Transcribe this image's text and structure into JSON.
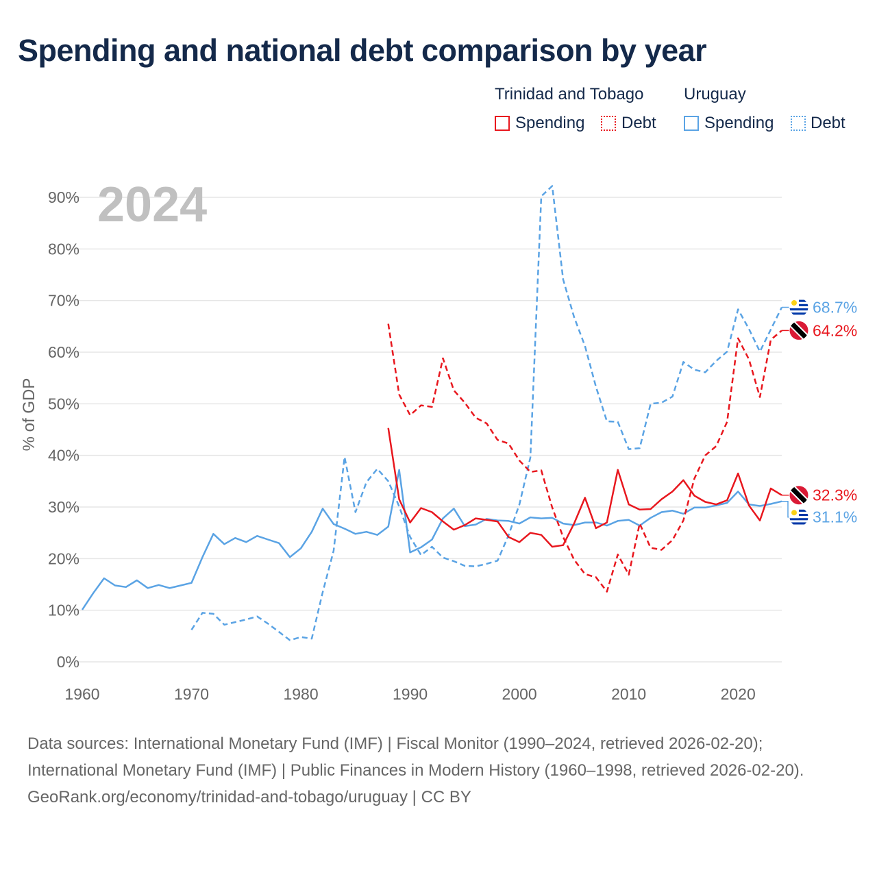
{
  "title": "Spending and national debt comparison by year",
  "legend": {
    "groups": [
      {
        "country": "Trinidad and Tobago",
        "color": "#e8171e",
        "items": [
          {
            "label": "Spending",
            "style": "solid"
          },
          {
            "label": "Debt",
            "style": "dotted"
          }
        ]
      },
      {
        "country": "Uruguay",
        "color": "#5aa3e4",
        "items": [
          {
            "label": "Spending",
            "style": "solid"
          },
          {
            "label": "Debt",
            "style": "dotted"
          }
        ]
      }
    ]
  },
  "year_label": "2024",
  "colors": {
    "tt": "#e8171e",
    "uy": "#5aa3e4",
    "grid": "#e6e6e6",
    "axis_text": "#666666",
    "title": "#14294a",
    "year": "#c0c0c0"
  },
  "chart_data": {
    "type": "line",
    "title": "Spending and national debt comparison by year",
    "xlabel": "",
    "ylabel": "% of GDP",
    "xlim": [
      1960,
      2024
    ],
    "ylim": [
      0,
      90
    ],
    "x_ticks": [
      1960,
      1970,
      1980,
      1990,
      2000,
      2010,
      2020
    ],
    "x_tick_labels": [
      "1960",
      "1970",
      "1980",
      "1990",
      "2000",
      "2010",
      "2020"
    ],
    "y_ticks": [
      0,
      10,
      20,
      30,
      40,
      50,
      60,
      70,
      80,
      90
    ],
    "y_tick_labels": [
      "0%",
      "10%",
      "20%",
      "30%",
      "40%",
      "50%",
      "60%",
      "70%",
      "80%",
      "90%"
    ],
    "series": [
      {
        "name": "Uruguay Spending",
        "country": "uy",
        "dash": "solid",
        "x": [
          1960,
          1961,
          1962,
          1963,
          1964,
          1965,
          1966,
          1967,
          1968,
          1969,
          1970,
          1971,
          1972,
          1973,
          1974,
          1975,
          1976,
          1977,
          1978,
          1979,
          1980,
          1981,
          1982,
          1983,
          1984,
          1985,
          1986,
          1987,
          1988,
          1989,
          1990,
          1991,
          1992,
          1993,
          1994,
          1995,
          1996,
          1997,
          1998,
          1999,
          2000,
          2001,
          2002,
          2003,
          2004,
          2005,
          2006,
          2007,
          2008,
          2009,
          2010,
          2011,
          2012,
          2013,
          2014,
          2015,
          2016,
          2017,
          2018,
          2019,
          2020,
          2021,
          2022,
          2023,
          2024
        ],
        "values": [
          10.1,
          13.3,
          16.2,
          14.8,
          14.5,
          15.8,
          14.3,
          14.9,
          14.3,
          14.8,
          15.3,
          20.3,
          24.8,
          22.8,
          24.0,
          23.2,
          24.4,
          23.7,
          23.0,
          20.3,
          22.0,
          25.2,
          29.7,
          26.7,
          25.8,
          24.8,
          25.2,
          24.6,
          26.2,
          37.2,
          21.2,
          22.2,
          23.7,
          27.8,
          29.7,
          26.3,
          26.6,
          27.7,
          27.4,
          27.3,
          26.8,
          28.0,
          27.8,
          27.9,
          26.8,
          26.5,
          27.0,
          27.0,
          26.4,
          27.3,
          27.5,
          26.4,
          27.9,
          29.0,
          29.3,
          28.7,
          29.9,
          29.9,
          30.3,
          30.8,
          33.0,
          30.5,
          30.2,
          30.6,
          31.1
        ]
      },
      {
        "name": "Uruguay Debt",
        "country": "uy",
        "dash": "dashed",
        "x": [
          1970,
          1971,
          1972,
          1973,
          1974,
          1975,
          1976,
          1977,
          1978,
          1979,
          1980,
          1981,
          1982,
          1983,
          1984,
          1985,
          1986,
          1987,
          1988,
          1989,
          1990,
          1991,
          1992,
          1993,
          1994,
          1995,
          1996,
          1997,
          1998,
          1999,
          2000,
          2001,
          2002,
          2003,
          2004,
          2005,
          2006,
          2007,
          2008,
          2009,
          2010,
          2011,
          2012,
          2013,
          2014,
          2015,
          2016,
          2017,
          2018,
          2019,
          2020,
          2021,
          2022,
          2023,
          2024
        ],
        "values": [
          6.2,
          9.5,
          9.3,
          7.2,
          7.7,
          8.2,
          8.8,
          7.4,
          5.8,
          4.2,
          4.8,
          4.5,
          13.5,
          21.5,
          39.7,
          29.0,
          34.8,
          37.4,
          35.0,
          30.1,
          24.2,
          20.7,
          22.3,
          20.2,
          19.5,
          18.6,
          18.5,
          19.0,
          19.6,
          24.5,
          30.5,
          39.6,
          90.2,
          92.2,
          74.1,
          66.8,
          61.2,
          53.3,
          46.6,
          46.5,
          41.2,
          41.4,
          50.0,
          50.2,
          51.4,
          58.1,
          56.6,
          56.1,
          58.3,
          60.1,
          68.3,
          64.5,
          60.1,
          64.4,
          68.7
        ]
      },
      {
        "name": "Trinidad and Tobago Spending",
        "country": "tt",
        "dash": "solid",
        "x": [
          1988,
          1989,
          1990,
          1991,
          1992,
          1993,
          1994,
          1995,
          1996,
          1997,
          1998,
          1999,
          2000,
          2001,
          2002,
          2003,
          2004,
          2005,
          2006,
          2007,
          2008,
          2009,
          2010,
          2011,
          2012,
          2013,
          2014,
          2015,
          2016,
          2017,
          2018,
          2019,
          2020,
          2021,
          2022,
          2023,
          2024
        ],
        "values": [
          45.3,
          31.5,
          27.0,
          29.8,
          29.0,
          27.2,
          25.6,
          26.5,
          27.8,
          27.5,
          27.2,
          24.2,
          23.2,
          25.0,
          24.6,
          22.3,
          22.6,
          26.8,
          31.8,
          25.9,
          27.0,
          37.2,
          30.5,
          29.5,
          29.6,
          31.5,
          33.0,
          35.2,
          32.2,
          31.0,
          30.5,
          31.3,
          36.5,
          30.3,
          27.4,
          33.6,
          32.3
        ]
      },
      {
        "name": "Trinidad and Tobago Debt",
        "country": "tt",
        "dash": "dashed",
        "x": [
          1988,
          1989,
          1990,
          1991,
          1992,
          1993,
          1994,
          1995,
          1996,
          1997,
          1998,
          1999,
          2000,
          2001,
          2002,
          2003,
          2004,
          2005,
          2006,
          2007,
          2008,
          2009,
          2010,
          2011,
          2012,
          2013,
          2014,
          2015,
          2016,
          2017,
          2018,
          2019,
          2020,
          2021,
          2022,
          2023,
          2024
        ],
        "values": [
          65.5,
          51.8,
          47.8,
          49.7,
          49.4,
          58.8,
          52.6,
          50.2,
          47.3,
          46.2,
          43.0,
          42.3,
          39.0,
          36.8,
          37.1,
          29.9,
          24.2,
          19.8,
          17.0,
          16.4,
          13.6,
          20.8,
          16.9,
          26.8,
          22.1,
          21.7,
          23.6,
          27.4,
          35.5,
          40.0,
          41.8,
          46.5,
          62.7,
          58.6,
          51.3,
          62.4,
          64.2
        ]
      }
    ],
    "end_labels": [
      {
        "series": "Uruguay Debt",
        "value": 68.7,
        "text": "68.7%",
        "country": "uy"
      },
      {
        "series": "Trinidad and Tobago Debt",
        "value": 64.2,
        "text": "64.2%",
        "country": "tt"
      },
      {
        "series": "Trinidad and Tobago Spending",
        "value": 32.3,
        "text": "32.3%",
        "country": "tt"
      },
      {
        "series": "Uruguay Spending",
        "value": 31.1,
        "text": "31.1%",
        "country": "uy"
      }
    ]
  },
  "footer": {
    "sources": "Data sources: International Monetary Fund (IMF) | Fiscal Monitor (1990–2024, retrieved 2026-02-20); International Monetary Fund (IMF) | Public Finances in Modern History (1960–1998, retrieved 2026-02-20).",
    "credit": "GeoRank.org/economy/trinidad-and-tobago/uruguay | CC BY"
  }
}
